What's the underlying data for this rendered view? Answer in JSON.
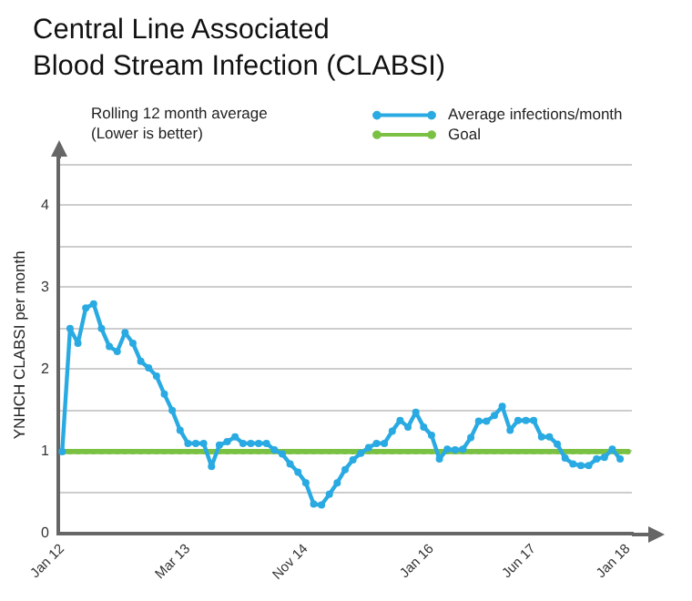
{
  "chart_data": {
    "type": "line",
    "title": "Central Line Associated\nBlood Stream Infection (CLABSI)",
    "subtitle": "Rolling 12 month average\n(Lower is better)",
    "ylabel": "YNHCH CLABSI per month",
    "categories": [
      "Jan 12",
      null,
      null,
      null,
      null,
      null,
      null,
      null,
      null,
      null,
      null,
      null,
      null,
      null,
      null,
      null,
      "Mar 13",
      null,
      null,
      null,
      null,
      null,
      null,
      null,
      null,
      null,
      null,
      null,
      null,
      null,
      null,
      "Nov 14",
      null,
      null,
      null,
      null,
      null,
      null,
      null,
      null,
      null,
      null,
      null,
      null,
      null,
      null,
      null,
      "Jan 16",
      null,
      null,
      null,
      null,
      null,
      null,
      null,
      null,
      null,
      null,
      null,
      null,
      "Jun 17",
      null,
      null,
      null,
      null,
      null,
      null,
      null,
      null,
      null,
      null,
      null,
      "Jan 18"
    ],
    "series": [
      {
        "name": "Average infections/month",
        "color": "#2aaae2",
        "values": [
          1,
          2.5,
          2.32,
          2.75,
          2.8,
          2.5,
          2.28,
          2.22,
          2.45,
          2.32,
          2.1,
          2.02,
          1.92,
          1.7,
          1.5,
          1.26,
          1.1,
          1.1,
          1.1,
          0.82,
          1.08,
          1.12,
          1.18,
          1.1,
          1.1,
          1.1,
          1.1,
          1.02,
          0.97,
          0.85,
          0.75,
          0.62,
          0.36,
          0.35,
          0.48,
          0.62,
          0.78,
          0.9,
          0.98,
          1.05,
          1.1,
          1.1,
          1.25,
          1.38,
          1.3,
          1.48,
          1.3,
          1.2,
          0.91,
          1.03,
          1.02,
          1.03,
          1.17,
          1.37,
          1.37,
          1.44,
          1.55,
          1.26,
          1.38,
          1.38,
          1.38,
          1.18,
          1.18,
          1.09,
          0.92,
          0.85,
          0.83,
          0.83,
          0.91,
          0.93,
          1.03,
          0.91,
          null
        ]
      },
      {
        "name": "Goal",
        "color": "#7ac143",
        "values": [
          1,
          1,
          1,
          1,
          1,
          1,
          1,
          1,
          1,
          1,
          1,
          1,
          1,
          1,
          1,
          1,
          1,
          1,
          1,
          1,
          1,
          1,
          1,
          1,
          1,
          1,
          1,
          1,
          1,
          1,
          1,
          1,
          1,
          1,
          1,
          1,
          1,
          1,
          1,
          1,
          1,
          1,
          1,
          1,
          1,
          1,
          1,
          1,
          1,
          1,
          1,
          1,
          1,
          1,
          1,
          1,
          1,
          1,
          1,
          1,
          1,
          1,
          1,
          1,
          1,
          1,
          1,
          1,
          1,
          1,
          1,
          1,
          1
        ]
      }
    ],
    "ylim": [
      0,
      4.6
    ],
    "yticks": [
      0,
      {
        "value": 0.5,
        "label": null
      },
      1,
      {
        "value": 1.5,
        "label": null
      },
      2,
      {
        "value": 2.5,
        "label": null
      },
      3,
      {
        "value": 3.5,
        "label": null
      },
      4,
      {
        "value": 4.5,
        "label": null
      }
    ],
    "grid": "y",
    "legend": "top right",
    "marker": "circle"
  }
}
